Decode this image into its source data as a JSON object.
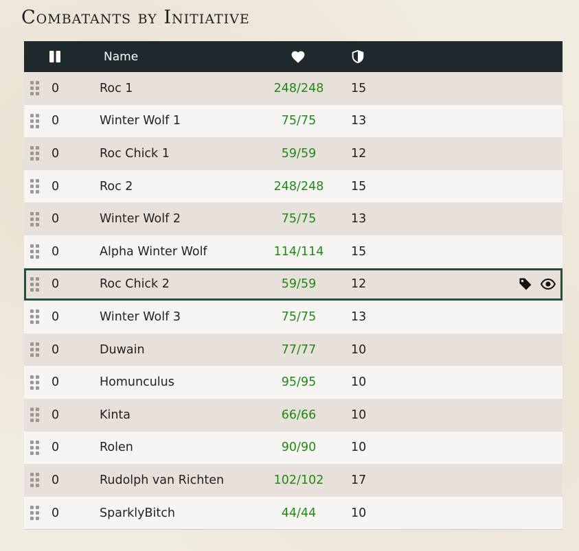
{
  "page": {
    "title": "Combatants by Initiative"
  },
  "table": {
    "headers": {
      "name": "Name",
      "pause_icon": "pause-icon",
      "hp_icon": "heart-icon",
      "ac_icon": "shield-icon"
    },
    "rows": [
      {
        "initiative": "0",
        "name": "Roc 1",
        "hp": "248/248",
        "ac": "15"
      },
      {
        "initiative": "0",
        "name": "Winter Wolf 1",
        "hp": "75/75",
        "ac": "13"
      },
      {
        "initiative": "0",
        "name": "Roc Chick 1",
        "hp": "59/59",
        "ac": "12"
      },
      {
        "initiative": "0",
        "name": "Roc 2",
        "hp": "248/248",
        "ac": "15"
      },
      {
        "initiative": "0",
        "name": "Winter Wolf 2",
        "hp": "75/75",
        "ac": "13"
      },
      {
        "initiative": "0",
        "name": "Alpha Winter Wolf",
        "hp": "114/114",
        "ac": "15"
      },
      {
        "initiative": "0",
        "name": "Roc Chick 2",
        "hp": "59/59",
        "ac": "12",
        "selected": true
      },
      {
        "initiative": "0",
        "name": "Winter Wolf 3",
        "hp": "75/75",
        "ac": "13"
      },
      {
        "initiative": "0",
        "name": "Duwain",
        "hp": "77/77",
        "ac": "10"
      },
      {
        "initiative": "0",
        "name": "Homunculus",
        "hp": "95/95",
        "ac": "10"
      },
      {
        "initiative": "0",
        "name": "Kinta",
        "hp": "66/66",
        "ac": "10"
      },
      {
        "initiative": "0",
        "name": "Rolen",
        "hp": "90/90",
        "ac": "10"
      },
      {
        "initiative": "0",
        "name": "Rudolph van Richten",
        "hp": "102/102",
        "ac": "17"
      },
      {
        "initiative": "0",
        "name": "SparklyBitch",
        "hp": "44/44",
        "ac": "10"
      }
    ],
    "selected_row_actions": [
      "tag-icon",
      "eye-icon"
    ]
  },
  "colors": {
    "header_bg": "#1e2a2d",
    "hp_text": "#1f8a12",
    "selected_border": "#24503a"
  }
}
